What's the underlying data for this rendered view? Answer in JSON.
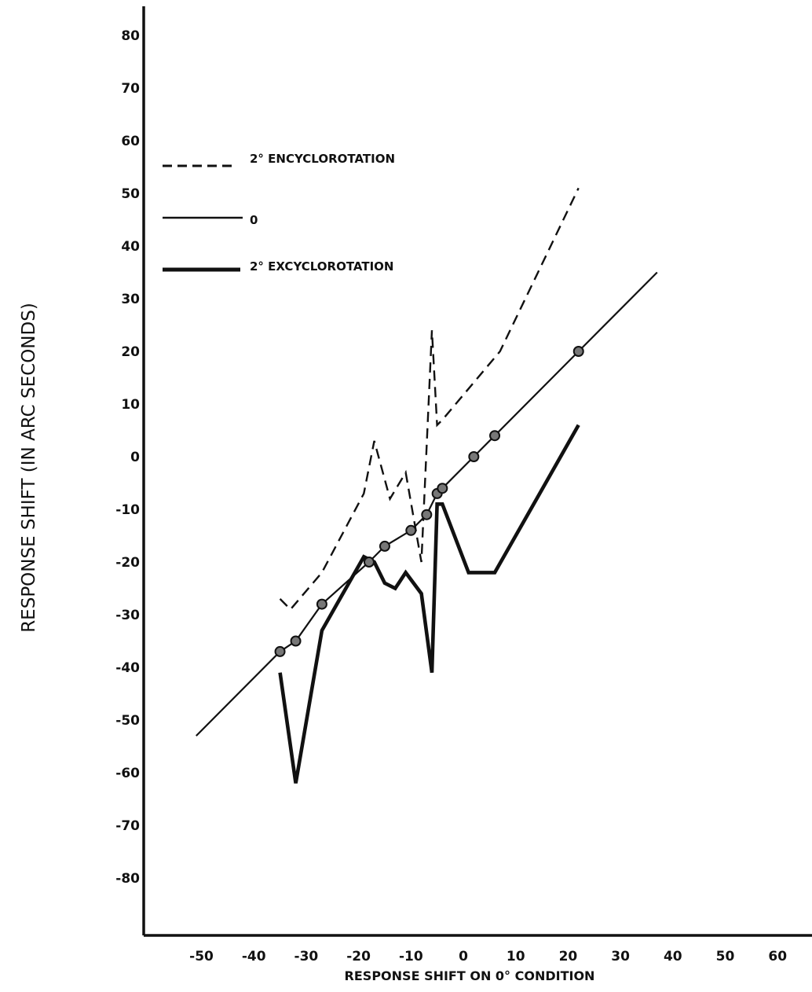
{
  "chart_data": {
    "type": "line",
    "title": "",
    "xlabel": "RESPONSE SHIFT ON 0° CONDITION",
    "ylabel": "RESPONSE SHIFT (IN ARC SECONDS)",
    "xlim": [
      -55,
      65
    ],
    "ylim": [
      -90,
      90
    ],
    "x_ticks": [
      -50,
      -40,
      -30,
      -20,
      -10,
      0,
      10,
      20,
      30,
      40,
      50,
      60
    ],
    "x_tick_labels": [
      "-50",
      "-40",
      "-30",
      "-20",
      "-10",
      "0",
      "10",
      "20",
      "30",
      "40",
      "50",
      "60"
    ],
    "y_ticks": [
      80,
      70,
      60,
      50,
      40,
      30,
      20,
      10,
      0,
      -10,
      -20,
      -30,
      -40,
      -50,
      -60,
      -70,
      -80
    ],
    "y_tick_labels": [
      "80",
      "70",
      "60",
      "50",
      "40",
      "30",
      "20",
      "10",
      "0",
      "-10",
      "-20",
      "-30",
      "-40",
      "-50",
      "-60",
      "-70",
      "-80"
    ],
    "grid": false,
    "legend_position": "upper-left",
    "series": [
      {
        "name": "2° ENCYCLOROTATION",
        "style": "dashed",
        "x": [
          -35,
          -33,
          -27,
          -19,
          -17,
          -14,
          -11,
          -8,
          -6,
          -5,
          -4,
          7,
          22
        ],
        "y": [
          -27,
          -29,
          -22,
          -7,
          3,
          -8,
          -3,
          -20,
          24,
          6,
          7,
          20,
          51
        ]
      },
      {
        "name": "0",
        "style": "solid",
        "x": [
          -51,
          -35,
          -32,
          -27,
          -18,
          -15,
          -10,
          -7,
          -5,
          -4,
          2,
          6,
          22,
          37
        ],
        "y": [
          -53,
          -37,
          -35,
          -28,
          -20,
          -17,
          -14,
          -11,
          -7,
          -6,
          0,
          4,
          20,
          35
        ],
        "markers_x": [
          -35,
          -32,
          -27,
          -18,
          -15,
          -10,
          -7,
          -5,
          -4,
          2,
          6,
          22
        ],
        "markers_y": [
          -37,
          -35,
          -28,
          -20,
          -17,
          -14,
          -11,
          -7,
          -6,
          0,
          4,
          20
        ]
      },
      {
        "name": "2° EXCYCLOROTATION",
        "style": "bold",
        "x": [
          -35,
          -32,
          -27,
          -19,
          -17,
          -15,
          -13,
          -11,
          -8,
          -6,
          -5,
          -4,
          1,
          6,
          14,
          22
        ],
        "y": [
          -41,
          -62,
          -33,
          -19,
          -20,
          -24,
          -25,
          -22,
          -26,
          -41,
          -9,
          -9,
          -22,
          -22,
          -8,
          6
        ]
      }
    ]
  }
}
